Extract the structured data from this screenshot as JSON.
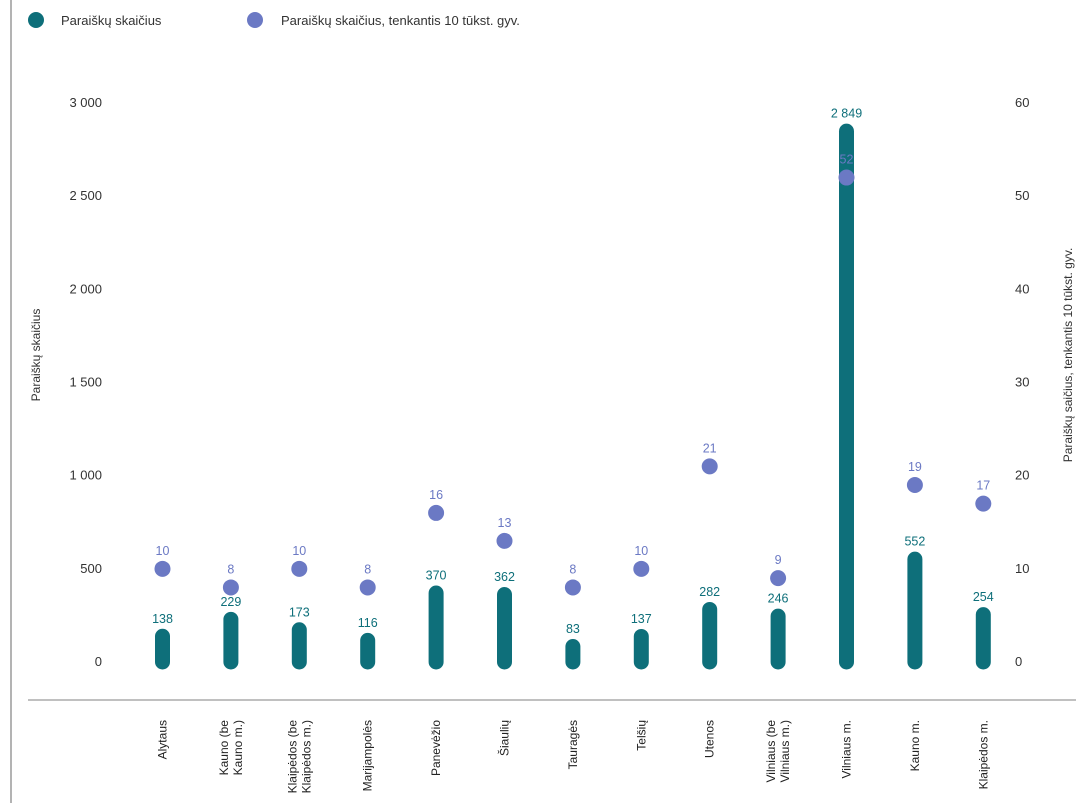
{
  "legend": {
    "series1": "Paraiškų skaičius",
    "series2": "Paraiškų skaičius, tenkantis 10 tūkst. gyv."
  },
  "colors": {
    "bar": "#0e6f7a",
    "dot": "#6b79c4",
    "axis": "#9a9a9a"
  },
  "chart_data": {
    "type": "bar",
    "ylabel": "Paraiškų skaičius",
    "y2label": "Paraiškų saičius, tenkantis 10 tūkst. gyv.",
    "ylim": [
      0,
      3000
    ],
    "y2lim": [
      0,
      60
    ],
    "yticks": [
      "0",
      "500",
      "1 000",
      "1 500",
      "2 000",
      "2 500",
      "3 000"
    ],
    "y2ticks": [
      "0",
      "10",
      "20",
      "30",
      "40",
      "50",
      "60"
    ],
    "grid": false,
    "legend_position": "top-left",
    "categories": [
      [
        "Alytaus"
      ],
      [
        "Kauno (be",
        "Kauno m.)"
      ],
      [
        "Klaipėdos (be",
        "Klaipėdos m.)"
      ],
      [
        "Marijampolės"
      ],
      [
        "Panevėžio"
      ],
      [
        "Šiaulių"
      ],
      [
        "Tauragės"
      ],
      [
        "Telšių"
      ],
      [
        "Utenos"
      ],
      [
        "Vilniaus (be",
        "Vilniaus m.)"
      ],
      [
        "Vilniaus m."
      ],
      [
        "Kauno m."
      ],
      [
        "Klaipėdos m."
      ]
    ],
    "series": [
      {
        "name": "Paraiškų skaičius",
        "axis": "left",
        "values": [
          138,
          229,
          173,
          116,
          370,
          362,
          83,
          137,
          282,
          246,
          2849,
          552,
          254
        ],
        "labels": [
          "138",
          "229",
          "173",
          "116",
          "370",
          "362",
          "83",
          "137",
          "282",
          "246",
          "2 849",
          "552",
          "254"
        ]
      },
      {
        "name": "Paraiškų skaičius, tenkantis 10 tūkst. gyv.",
        "axis": "right",
        "values": [
          10,
          8,
          10,
          8,
          16,
          13,
          8,
          10,
          21,
          9,
          52,
          19,
          17
        ],
        "labels": [
          "10",
          "8",
          "10",
          "8",
          "16",
          "13",
          "8",
          "10",
          "21",
          "9",
          "52",
          "19",
          "17"
        ]
      }
    ]
  }
}
